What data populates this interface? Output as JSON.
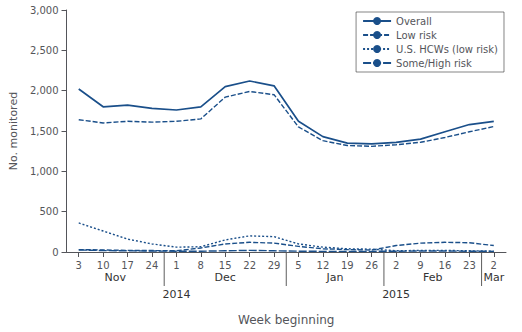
{
  "chart_data": {
    "type": "line",
    "categories": [
      "3",
      "10",
      "17",
      "24",
      "1",
      "8",
      "15",
      "22",
      "29",
      "5",
      "12",
      "19",
      "26",
      "2",
      "9",
      "16",
      "23",
      "2"
    ],
    "month_groups": [
      {
        "name": "Nov",
        "indices": [
          0,
          1,
          2,
          3
        ]
      },
      {
        "name": "Dec",
        "indices": [
          4,
          5,
          6,
          7,
          8
        ]
      },
      {
        "name": "Jan",
        "indices": [
          9,
          10,
          11,
          12
        ]
      },
      {
        "name": "Feb",
        "indices": [
          13,
          14,
          15,
          16
        ]
      },
      {
        "name": "Mar",
        "indices": [
          17
        ]
      }
    ],
    "year_groups": [
      {
        "name": "2014",
        "indices": [
          0,
          1,
          2,
          3,
          4,
          5,
          6,
          7,
          8
        ]
      },
      {
        "name": "2015",
        "indices": [
          9,
          10,
          11,
          12,
          13,
          14,
          15,
          16,
          17
        ]
      }
    ],
    "series": [
      {
        "name": "Overall",
        "color": "#1a4f8a",
        "line_style": "solid",
        "values": [
          2020,
          1800,
          1820,
          1780,
          1760,
          1800,
          2050,
          2120,
          2060,
          1620,
          1430,
          1350,
          1340,
          1360,
          1400,
          1490,
          1580,
          1620
        ]
      },
      {
        "name": "Low risk",
        "color": "#1a4f8a",
        "line_style": "dashed",
        "values": [
          1640,
          1600,
          1620,
          1610,
          1620,
          1650,
          1920,
          1990,
          1950,
          1550,
          1380,
          1320,
          1310,
          1330,
          1360,
          1420,
          1490,
          1555
        ]
      },
      {
        "name": "U.S. HCWs (low risk)",
        "color": "#1a4f8a",
        "line_style": "dotted",
        "values": [
          360,
          260,
          160,
          100,
          60,
          65,
          150,
          200,
          190,
          100,
          60,
          40,
          35,
          15,
          20,
          20,
          15,
          10
        ]
      },
      {
        "name": "Some/High risk",
        "color": "#1a4f8a",
        "line_style": "longdash",
        "values": [
          25,
          18,
          15,
          12,
          10,
          10,
          15,
          20,
          15,
          10,
          8,
          8,
          8,
          10,
          12,
          12,
          10,
          8
        ]
      },
      {
        "name": "Low risk",
        "color": "#1a4f8a",
        "line_style": "dashed",
        "values": [
          30,
          25,
          20,
          18,
          15,
          50,
          100,
          120,
          110,
          70,
          40,
          30,
          25,
          80,
          110,
          120,
          115,
          80
        ]
      }
    ],
    "ylim": [
      0,
      3000
    ],
    "yticks": [
      0,
      500,
      {
        "value": 1000,
        "label": "1,000"
      },
      {
        "value": 1500,
        "label": "1,500"
      },
      {
        "value": 2000,
        "label": "2,000"
      },
      {
        "value": 2500,
        "label": "2,500"
      },
      {
        "value": 3000,
        "label": "3,000"
      }
    ],
    "ylabel": "No. monitored",
    "xlabel": "Week beginning",
    "legend": "upper right",
    "grid": false
  }
}
